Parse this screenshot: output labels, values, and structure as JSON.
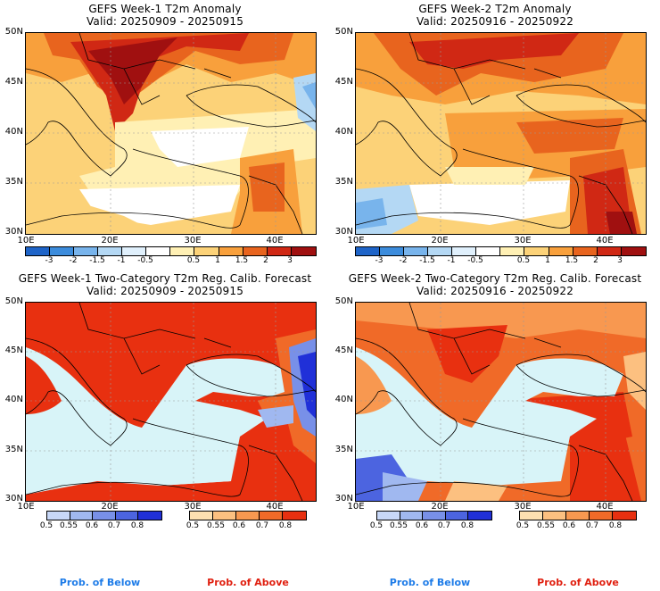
{
  "panels": [
    {
      "title": "GEFS Week-1 T2m Anomaly",
      "valid": "Valid: 20250909 - 20250915"
    },
    {
      "title": "GEFS Week-2 T2m Anomaly",
      "valid": "Valid: 20250916 - 20250922"
    },
    {
      "title": "GEFS Week-1 Two-Category T2m Reg. Calib. Forecast",
      "valid": "Valid: 20250909 - 20250915"
    },
    {
      "title": "GEFS Week-2 Two-Category T2m Reg. Calib. Forecast",
      "valid": "Valid: 20250916 - 20250922"
    }
  ],
  "lat_labels": [
    "50N",
    "45N",
    "40N",
    "35N",
    "30N"
  ],
  "lon_labels": [
    "10E",
    "20E",
    "30E",
    "40E"
  ],
  "anomaly_scale": {
    "ticks": [
      "-3",
      "-2",
      "-1.5",
      "-1",
      "-0.5",
      "0.5",
      "1",
      "1.5",
      "2",
      "3"
    ],
    "colors": [
      "#1e64c8",
      "#3c8cdc",
      "#78b4ec",
      "#b4d8f4",
      "#e0f0fc",
      "#ffffff",
      "#fff0b4",
      "#fcd278",
      "#f8a03c",
      "#e8641e",
      "#d02814",
      "#a01010"
    ]
  },
  "below_scale": {
    "ticks": [
      "0.5",
      "0.55",
      "0.6",
      "0.7",
      "0.8"
    ],
    "colors": [
      "#c8d8f8",
      "#a0b8f0",
      "#7890e8",
      "#4c64e0",
      "#2030d8"
    ]
  },
  "above_scale": {
    "ticks": [
      "0.5",
      "0.55",
      "0.6",
      "0.7",
      "0.8"
    ],
    "colors": [
      "#fde0b0",
      "#fcc080",
      "#f89850",
      "#f06a28",
      "#e83010"
    ]
  },
  "legend": {
    "below": "Prob. of Below",
    "above": "Prob. of Above"
  },
  "colors": {
    "below_label": "#1e7ce8",
    "above_label": "#e02010",
    "sea_prob": "#d8f4f8"
  }
}
